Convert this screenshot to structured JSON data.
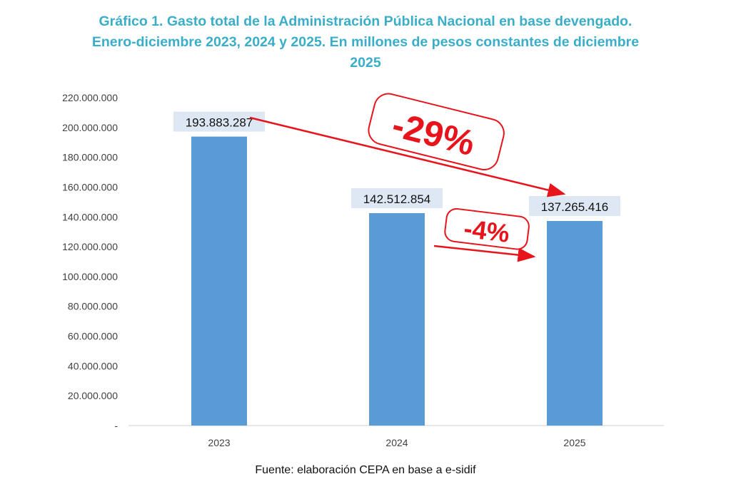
{
  "chart_data": {
    "type": "bar",
    "title_lines": [
      "Gráfico 1. Gasto total de la Administración Pública Nacional en base devengado.",
      "Enero-diciembre 2023, 2024 y 2025. En millones de pesos constantes de diciembre",
      "2025"
    ],
    "categories": [
      "2023",
      "2024",
      "2025"
    ],
    "values": [
      193883287,
      142512854,
      137265416
    ],
    "data_labels": [
      "193.883.287",
      "142.512.854",
      "137.265.416"
    ],
    "ylim": [
      0,
      220000000
    ],
    "yticks": [
      0,
      20000000,
      40000000,
      60000000,
      80000000,
      100000000,
      120000000,
      140000000,
      160000000,
      180000000,
      200000000,
      220000000
    ],
    "ytick_labels": [
      "-",
      "20.000.000",
      "40.000.000",
      "60.000.000",
      "80.000.000",
      "100.000.000",
      "120.000.000",
      "140.000.000",
      "160.000.000",
      "180.000.000",
      "200.000.000",
      "220.000.000"
    ],
    "grid": false,
    "annotations": [
      {
        "text": "-29%",
        "from": "2023",
        "to": "2025"
      },
      {
        "text": "-4%",
        "from": "2024",
        "to": "2025"
      }
    ],
    "colors": {
      "bar": "#5b9bd5",
      "label_bg": "#dde8f4",
      "annotation": "#e8141c",
      "title": "#3aaec8"
    }
  },
  "source": "Fuente: elaboración CEPA en base a e-sidif"
}
